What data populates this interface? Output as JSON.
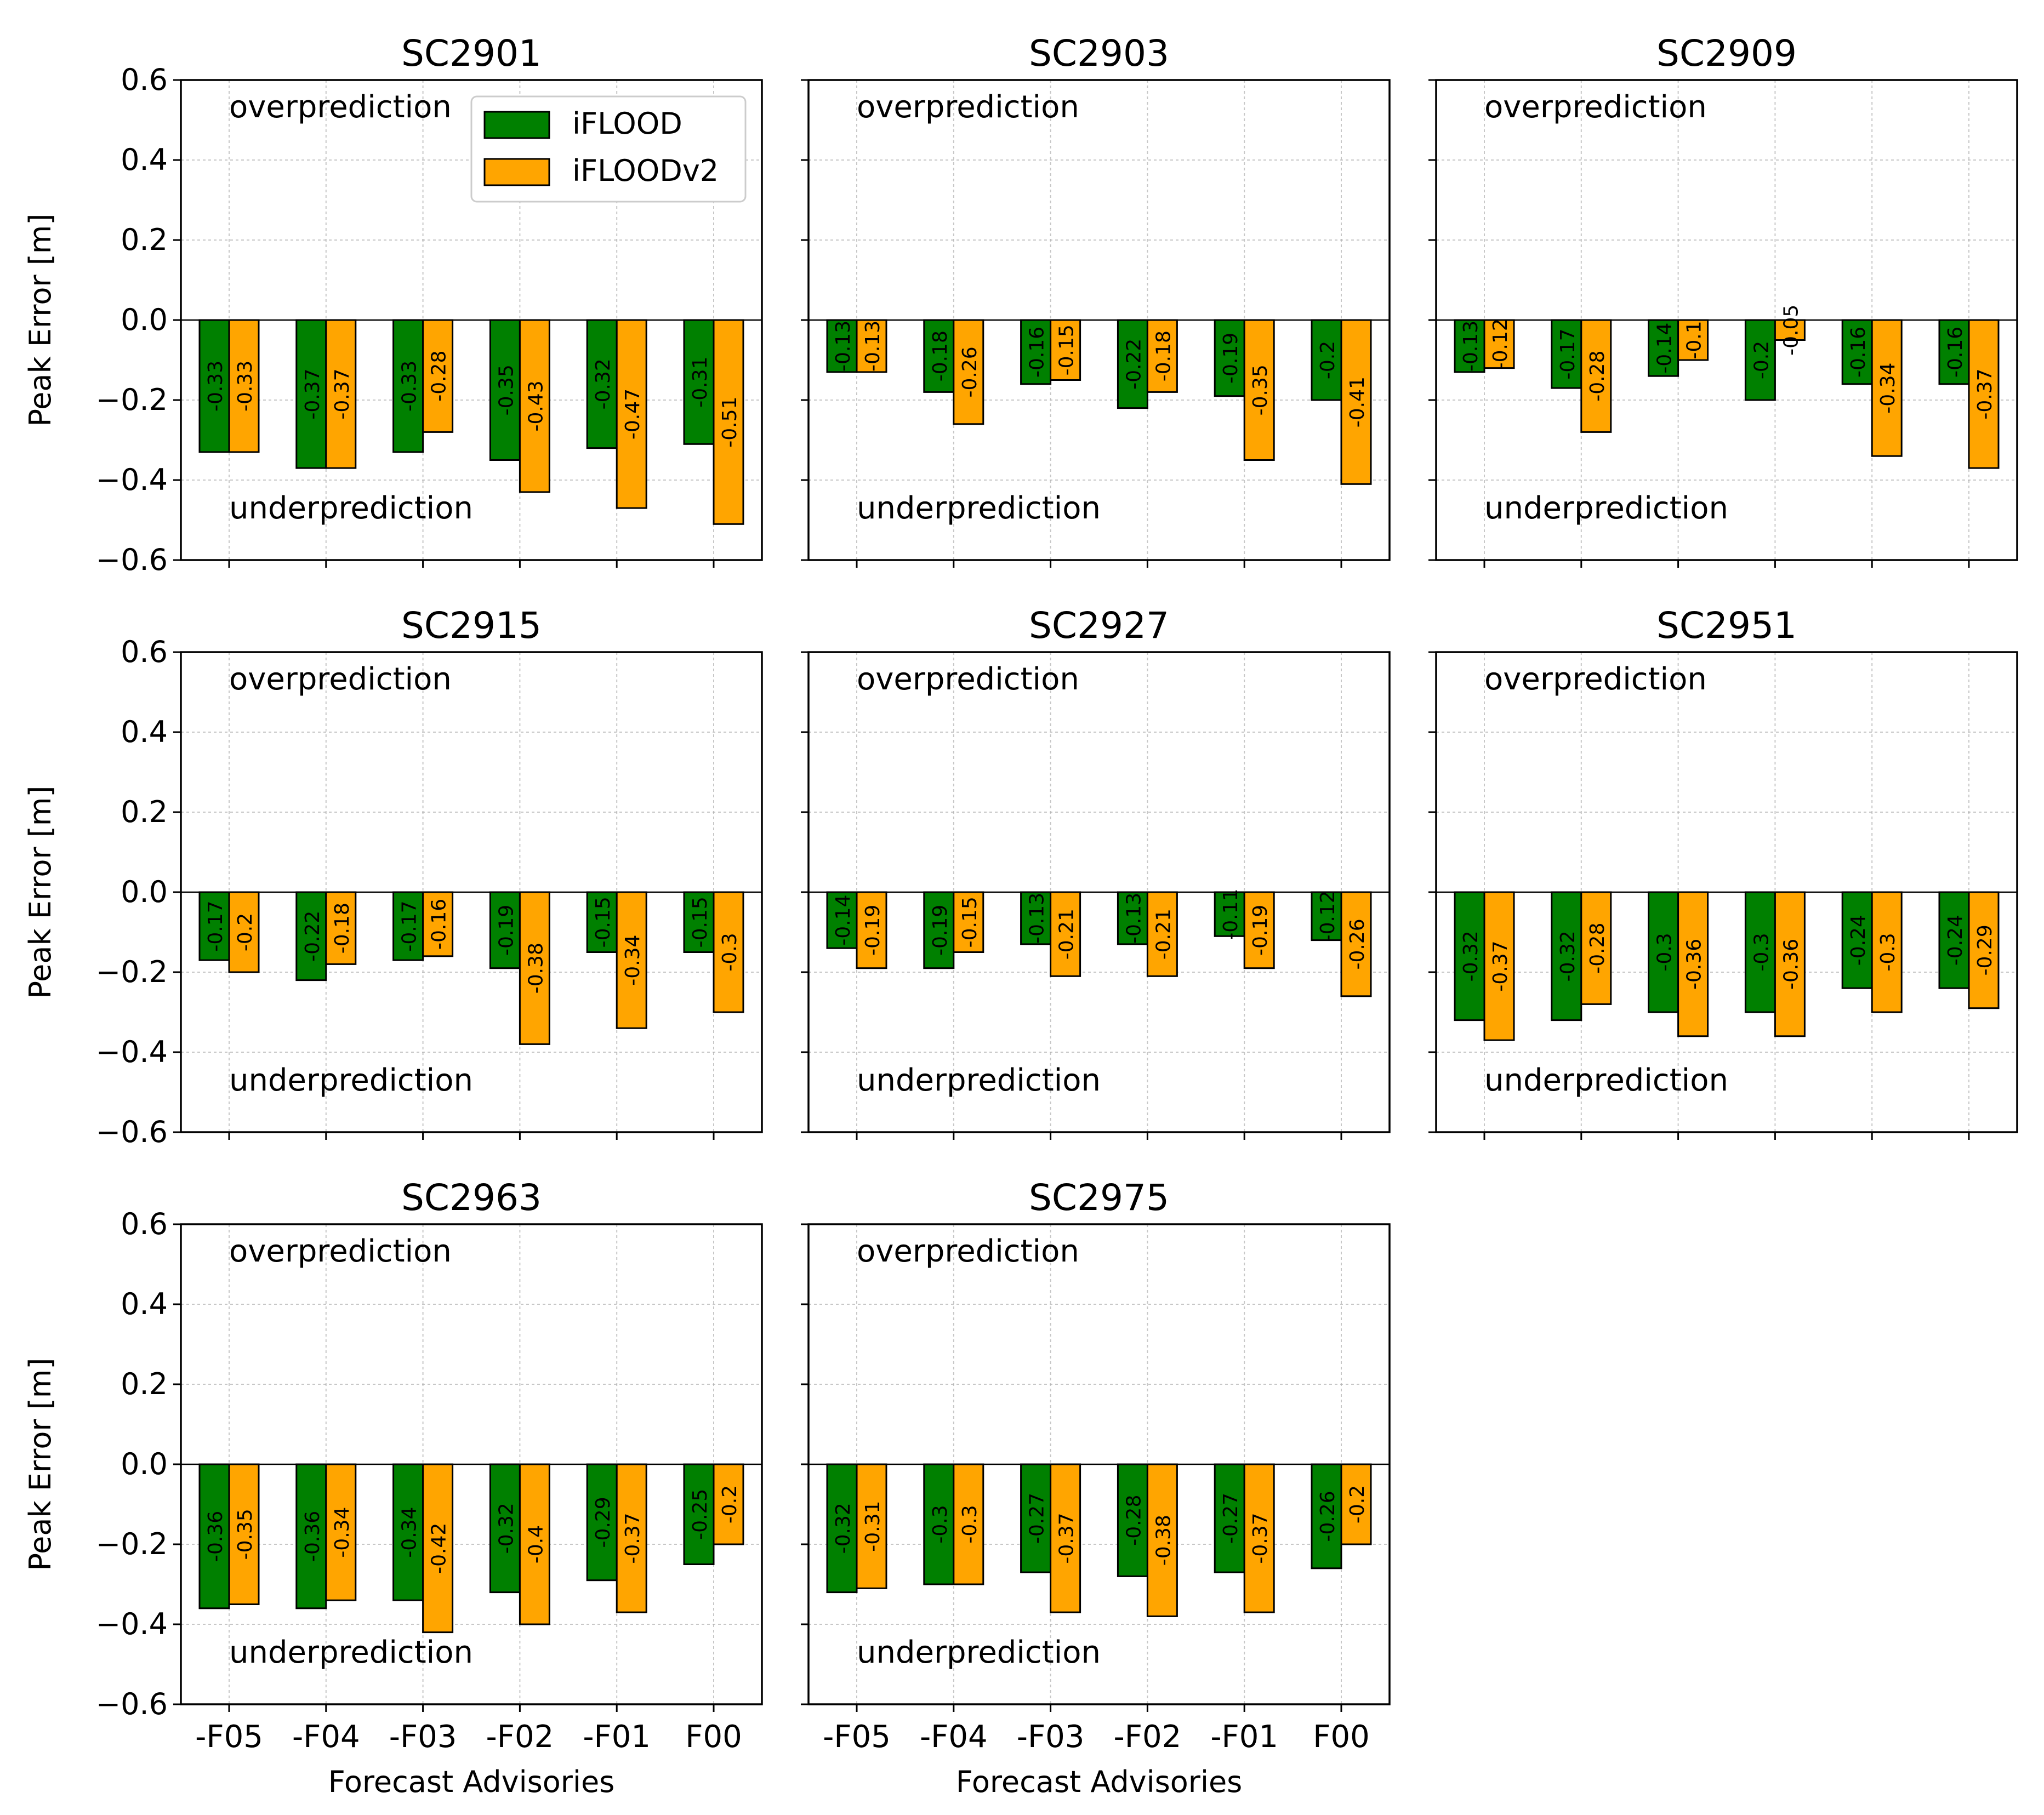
{
  "chart_data": {
    "type": "bar",
    "layout": "grid 3 rows x 3 columns of subplots, shared axes",
    "ylabel": "Peak Error [m]",
    "xlabel": "Forecast Advisories",
    "categories": [
      "-F05",
      "-F04",
      "-F03",
      "-F02",
      "-F01",
      "F00"
    ],
    "ylim": [
      -0.6,
      0.6
    ],
    "yticks": [
      0.6,
      0.4,
      0.2,
      0.0,
      -0.2,
      -0.4,
      -0.6
    ],
    "ytick_labels": [
      "0.6",
      "0.4",
      "0.2",
      "0.0",
      "−0.2",
      "−0.4",
      "−0.6"
    ],
    "grid": true,
    "annotations": {
      "over": "overprediction",
      "under": "underprediction"
    },
    "legend": {
      "placement": "upper-center of first subplot",
      "entries": [
        {
          "name": "iFLOOD",
          "color": "#008000"
        },
        {
          "name": "iFLOODv2",
          "color": "#FFA500"
        }
      ]
    },
    "series_colors": [
      "#008000",
      "#FFA500"
    ],
    "subplots": [
      {
        "title": "SC2901",
        "series": [
          {
            "name": "iFLOOD",
            "values": [
              -0.33,
              -0.37,
              -0.33,
              -0.35,
              -0.32,
              -0.31
            ],
            "labels": [
              "-0.33",
              "-0.37",
              "-0.33",
              "-0.35",
              "-0.32",
              "-0.31"
            ]
          },
          {
            "name": "iFLOODv2",
            "values": [
              -0.33,
              -0.37,
              -0.28,
              -0.43,
              -0.47,
              -0.51
            ],
            "labels": [
              "-0.33",
              "-0.37",
              "-0.28",
              "-0.43",
              "-0.47",
              "-0.51"
            ]
          }
        ]
      },
      {
        "title": "SC2903",
        "series": [
          {
            "name": "iFLOOD",
            "values": [
              -0.13,
              -0.18,
              -0.16,
              -0.22,
              -0.19,
              -0.2
            ],
            "labels": [
              "-0.13",
              "-0.18",
              "-0.16",
              "-0.22",
              "-0.19",
              "-0.2"
            ]
          },
          {
            "name": "iFLOODv2",
            "values": [
              -0.13,
              -0.26,
              -0.15,
              -0.18,
              -0.35,
              -0.41
            ],
            "labels": [
              "-0.13",
              "-0.26",
              "-0.15",
              "-0.18",
              "-0.35",
              "-0.41"
            ]
          }
        ]
      },
      {
        "title": "SC2909",
        "series": [
          {
            "name": "iFLOOD",
            "values": [
              -0.13,
              -0.17,
              -0.14,
              -0.2,
              -0.16,
              -0.16
            ],
            "labels": [
              "-0.13",
              "-0.17",
              "-0.14",
              "-0.2",
              "-0.16",
              "-0.16"
            ]
          },
          {
            "name": "iFLOODv2",
            "values": [
              -0.12,
              -0.28,
              -0.1,
              -0.05,
              -0.34,
              -0.37
            ],
            "labels": [
              "-0.12",
              "-0.28",
              "-0.1",
              "-0.05",
              "-0.34",
              "-0.37"
            ]
          }
        ]
      },
      {
        "title": "SC2915",
        "series": [
          {
            "name": "iFLOOD",
            "values": [
              -0.17,
              -0.22,
              -0.17,
              -0.19,
              -0.15,
              -0.15
            ],
            "labels": [
              "-0.17",
              "-0.22",
              "-0.17",
              "-0.19",
              "-0.15",
              "-0.15"
            ]
          },
          {
            "name": "iFLOODv2",
            "values": [
              -0.2,
              -0.18,
              -0.16,
              -0.38,
              -0.34,
              -0.3
            ],
            "labels": [
              "-0.2",
              "-0.18",
              "-0.16",
              "-0.38",
              "-0.34",
              "-0.3"
            ]
          }
        ]
      },
      {
        "title": "SC2927",
        "series": [
          {
            "name": "iFLOOD",
            "values": [
              -0.14,
              -0.19,
              -0.13,
              -0.13,
              -0.11,
              -0.12
            ],
            "labels": [
              "-0.14",
              "-0.19",
              "-0.13",
              "-0.13",
              "-0.11",
              "-0.12"
            ]
          },
          {
            "name": "iFLOODv2",
            "values": [
              -0.19,
              -0.15,
              -0.21,
              -0.21,
              -0.19,
              -0.26
            ],
            "labels": [
              "-0.19",
              "-0.15",
              "-0.21",
              "-0.21",
              "-0.19",
              "-0.26"
            ]
          }
        ]
      },
      {
        "title": "SC2951",
        "series": [
          {
            "name": "iFLOOD",
            "values": [
              -0.32,
              -0.32,
              -0.3,
              -0.3,
              -0.24,
              -0.24
            ],
            "labels": [
              "-0.32",
              "-0.32",
              "-0.3",
              "-0.3",
              "-0.24",
              "-0.24"
            ]
          },
          {
            "name": "iFLOODv2",
            "values": [
              -0.37,
              -0.28,
              -0.36,
              -0.36,
              -0.3,
              -0.29
            ],
            "labels": [
              "-0.37",
              "-0.28",
              "-0.36",
              "-0.36",
              "-0.3",
              "-0.29"
            ]
          }
        ]
      },
      {
        "title": "SC2963",
        "series": [
          {
            "name": "iFLOOD",
            "values": [
              -0.36,
              -0.36,
              -0.34,
              -0.32,
              -0.29,
              -0.25
            ],
            "labels": [
              "-0.36",
              "-0.36",
              "-0.34",
              "-0.32",
              "-0.29",
              "-0.25"
            ]
          },
          {
            "name": "iFLOODv2",
            "values": [
              -0.35,
              -0.34,
              -0.42,
              -0.4,
              -0.37,
              -0.2
            ],
            "labels": [
              "-0.35",
              "-0.34",
              "-0.42",
              "-0.4",
              "-0.37",
              "-0.2"
            ]
          }
        ]
      },
      {
        "title": "SC2975",
        "series": [
          {
            "name": "iFLOOD",
            "values": [
              -0.32,
              -0.3,
              -0.27,
              -0.28,
              -0.27,
              -0.26
            ],
            "labels": [
              "-0.32",
              "-0.3",
              "-0.27",
              "-0.28",
              "-0.27",
              "-0.26"
            ]
          },
          {
            "name": "iFLOODv2",
            "values": [
              -0.31,
              -0.3,
              -0.37,
              -0.38,
              -0.37,
              -0.2
            ],
            "labels": [
              "-0.31",
              "-0.3",
              "-0.37",
              "-0.38",
              "-0.37",
              "-0.2"
            ]
          }
        ]
      }
    ]
  }
}
